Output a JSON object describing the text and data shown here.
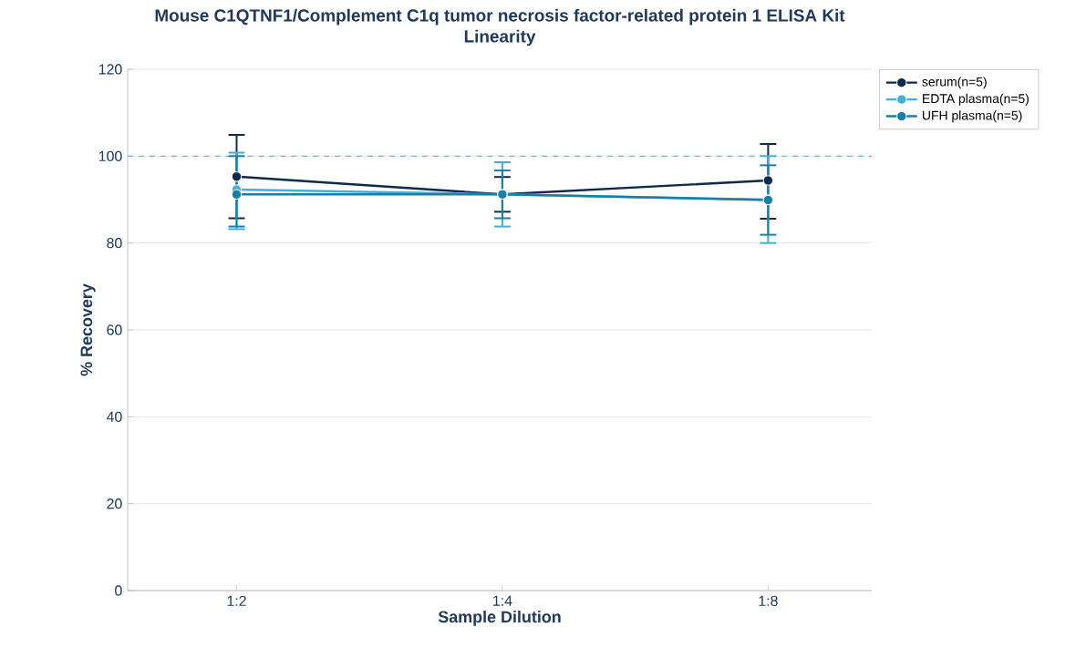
{
  "chart_data": {
    "type": "line",
    "title": "Mouse C1QTNF1/Complement C1q tumor necrosis factor-related protein 1 ELISA Kit",
    "subtitle": "Linearity",
    "xlabel": "Sample Dilution",
    "ylabel": "% Recovery",
    "categories": [
      "1:2",
      "1:4",
      "1:8"
    ],
    "series": [
      {
        "name": "serum(n=5)",
        "color": "#0d2a4a",
        "values": [
          95.3,
          91.2,
          94.4
        ],
        "errors": [
          9.6,
          4,
          [
            85.6,
            102.8
          ]
        ]
      },
      {
        "name": "EDTA plasma(n=5)",
        "color": "#3fb0d9",
        "values": [
          92.3,
          91.2,
          90
        ],
        "errors": [
          [
            83.2,
            100.8
          ],
          7.4,
          10
        ]
      },
      {
        "name": "UFH plasma(n=5)",
        "color": "#1a7fa8",
        "values": [
          91.2,
          91.2,
          89.9
        ],
        "errors": [
          [
            83.8,
            100
          ],
          5.5,
          8
        ]
      }
    ],
    "ylim": [
      0,
      120
    ],
    "yticks": [
      0,
      20,
      40,
      60,
      80,
      100,
      120
    ],
    "ref_lines": [
      {
        "axis": "y",
        "value": 100,
        "color": "#5bc0e8",
        "line_style": "dashed"
      }
    ],
    "grid": "y",
    "legend": "top right",
    "marker": "circle",
    "line_style": "solid"
  }
}
